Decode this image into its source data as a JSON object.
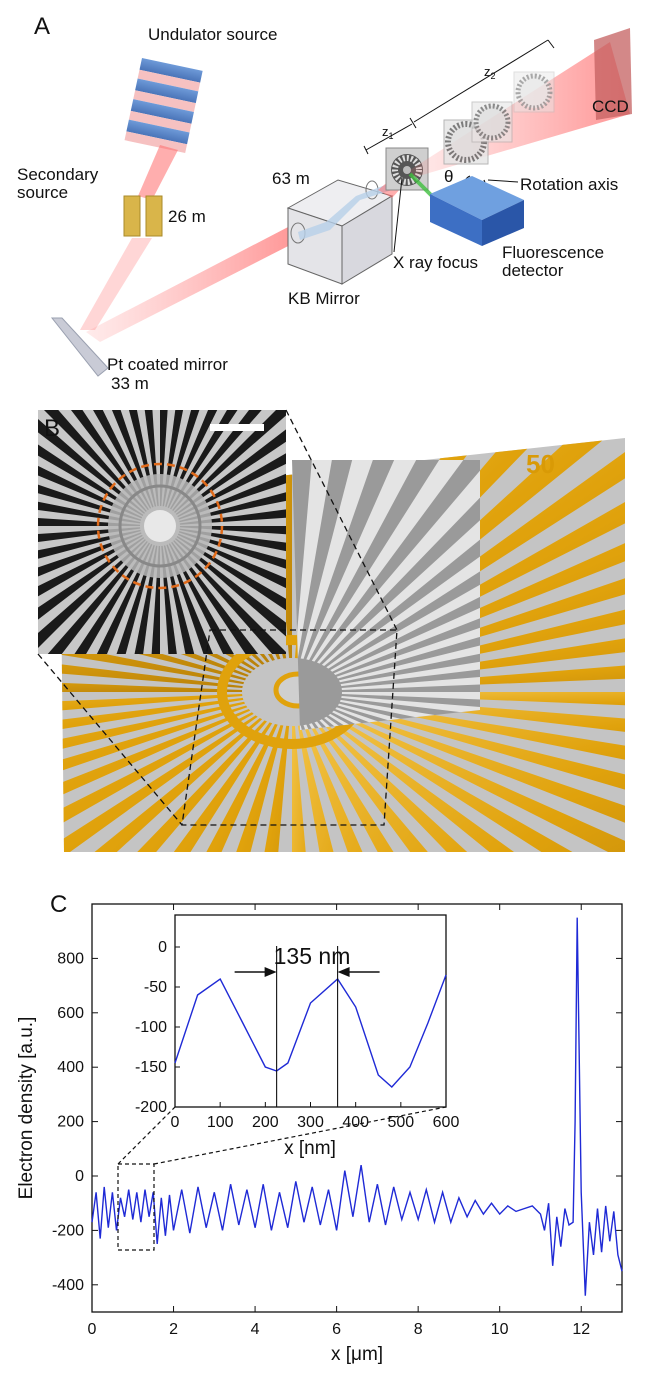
{
  "panel_a": {
    "letter": "A",
    "labels": {
      "undulator": "Undulator source",
      "secondary_1": "Secondary",
      "secondary_2": "source",
      "secondary_dist": "26 m",
      "pt_mirror": "Pt coated mirror",
      "pt_dist": "33 m",
      "kb_dist": "63 m",
      "kb": "KB Mirror",
      "xray_focus": "X ray focus",
      "fluor_1": "Fluorescence",
      "fluor_2": "detector",
      "ccd": "CCD",
      "rotation": "Rotation axis",
      "theta": "θ",
      "z1": "z",
      "z1_sub": "1",
      "z2": "z",
      "z2_sub": "2"
    }
  },
  "panel_b": {
    "letter": "B",
    "stamp": "50"
  },
  "panel_c": {
    "letter": "C",
    "colors": {
      "line": "#1f2ad6"
    },
    "chart_data": [
      {
        "type": "line",
        "xlabel": "x [μm]",
        "ylabel": "Electron density [a.u.]",
        "xlim": [
          0,
          13
        ],
        "ylim": [
          -500,
          1000
        ],
        "xticks": [
          "0",
          "2",
          "4",
          "6",
          "8",
          "10",
          "12"
        ],
        "yticks": [
          "-400",
          "-200",
          "0",
          "200",
          "400",
          "600",
          "800"
        ],
        "series": [
          {
            "x": [
              0,
              0.1,
              0.2,
              0.3,
              0.4,
              0.5,
              0.6,
              0.7,
              0.8,
              0.9,
              1.0,
              1.1,
              1.2,
              1.3,
              1.4,
              1.5,
              1.6,
              1.7,
              1.8,
              1.9,
              2.0,
              2.2,
              2.4,
              2.6,
              2.8,
              3.0,
              3.2,
              3.4,
              3.6,
              3.8,
              4.0,
              4.2,
              4.4,
              4.6,
              4.8,
              5.0,
              5.2,
              5.4,
              5.6,
              5.8,
              6.0,
              6.2,
              6.4,
              6.6,
              6.8,
              7.0,
              7.2,
              7.4,
              7.6,
              7.8,
              8.0,
              8.2,
              8.4,
              8.6,
              8.8,
              9.0,
              9.2,
              9.4,
              9.6,
              9.8,
              10.0,
              10.2,
              10.4,
              10.6,
              10.8,
              11.0,
              11.1,
              11.2,
              11.3,
              11.4,
              11.5,
              11.6,
              11.7,
              11.8,
              11.85,
              11.9,
              12.0,
              12.1,
              12.2,
              12.3,
              12.4,
              12.5,
              12.6,
              12.7,
              12.8,
              12.9,
              13.0
            ],
            "y": [
              -170,
              -60,
              -230,
              -40,
              -190,
              -60,
              -200,
              -80,
              -150,
              -50,
              -160,
              -60,
              -170,
              -50,
              -150,
              -60,
              -250,
              -80,
              -220,
              -70,
              -200,
              -50,
              -210,
              -40,
              -190,
              -60,
              -200,
              -30,
              -180,
              -50,
              -190,
              -30,
              -200,
              -60,
              -190,
              -20,
              -170,
              -40,
              -180,
              -50,
              -200,
              20,
              -150,
              40,
              -170,
              -30,
              -180,
              -40,
              -160,
              -60,
              -160,
              -50,
              -170,
              -60,
              -170,
              -80,
              -150,
              -90,
              -140,
              -100,
              -140,
              -110,
              -130,
              -120,
              -110,
              -140,
              -200,
              -100,
              -330,
              -150,
              -260,
              -120,
              -180,
              -170,
              200,
              950,
              -60,
              -440,
              -170,
              -290,
              -120,
              -280,
              -110,
              -240,
              -130,
              -290,
              -350
            ]
          }
        ]
      },
      {
        "type": "line",
        "annotation": "135 nm",
        "xlabel": "x [nm]",
        "xlim": [
          0,
          600
        ],
        "ylim": [
          -200,
          40
        ],
        "xticks": [
          "0",
          "100",
          "200",
          "300",
          "400",
          "500",
          "600"
        ],
        "yticks": [
          "0",
          "-50",
          "-100",
          "-150",
          "-200"
        ],
        "series": [
          {
            "x": [
              0,
              50,
              100,
              150,
              200,
              225,
              250,
              300,
              360,
              400,
              450,
              480,
              520,
              560,
              600
            ],
            "y": [
              -145,
              -60,
              -40,
              -95,
              -150,
              -155,
              -145,
              -70,
              -40,
              -75,
              -160,
              -175,
              -150,
              -95,
              -35
            ]
          }
        ]
      }
    ]
  }
}
